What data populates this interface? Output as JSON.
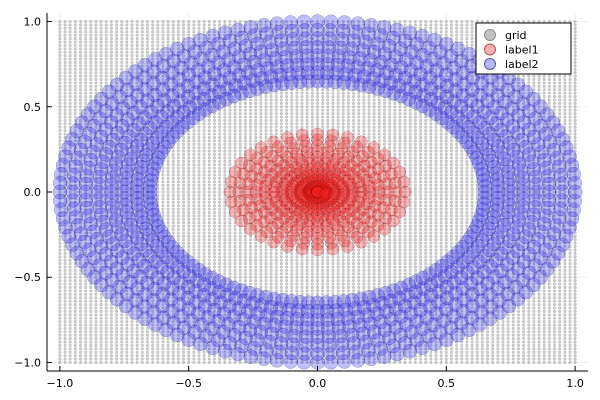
{
  "chart_data": {
    "type": "scatter",
    "title": "",
    "xlabel": "",
    "ylabel": "",
    "xlim": [
      -1.05,
      1.05
    ],
    "ylim": [
      -1.05,
      1.05
    ],
    "x_ticks": [
      -1.0,
      -0.5,
      0.0,
      0.5,
      1.0
    ],
    "y_ticks": [
      -1.0,
      -0.5,
      0.0,
      0.5,
      1.0
    ],
    "x_tick_labels": [
      "−1.0",
      "−0.5",
      "0.0",
      "0.5",
      "1.0"
    ],
    "y_tick_labels": [
      "−1.0",
      "−0.5",
      "0.0",
      "0.5",
      "1.0"
    ],
    "grid": true,
    "legend_position": "top-right",
    "series": [
      {
        "name": "grid",
        "color": "#808080",
        "marker": "small-circle",
        "pattern": "regular grid",
        "x_range": [
          -1.0,
          1.0
        ],
        "y_range": [
          -1.0,
          1.0
        ],
        "step": 0.02
      },
      {
        "name": "label1",
        "color": "#e00000",
        "marker": "circle",
        "pattern": "radial rays",
        "radius_x": 0.34,
        "radius_y": 0.34,
        "rays": 36
      },
      {
        "name": "label2",
        "color": "#0000dd",
        "marker": "circle",
        "pattern": "ring",
        "outer_radius": 1.0,
        "inner_radius": 0.65,
        "angles": 120
      }
    ]
  }
}
